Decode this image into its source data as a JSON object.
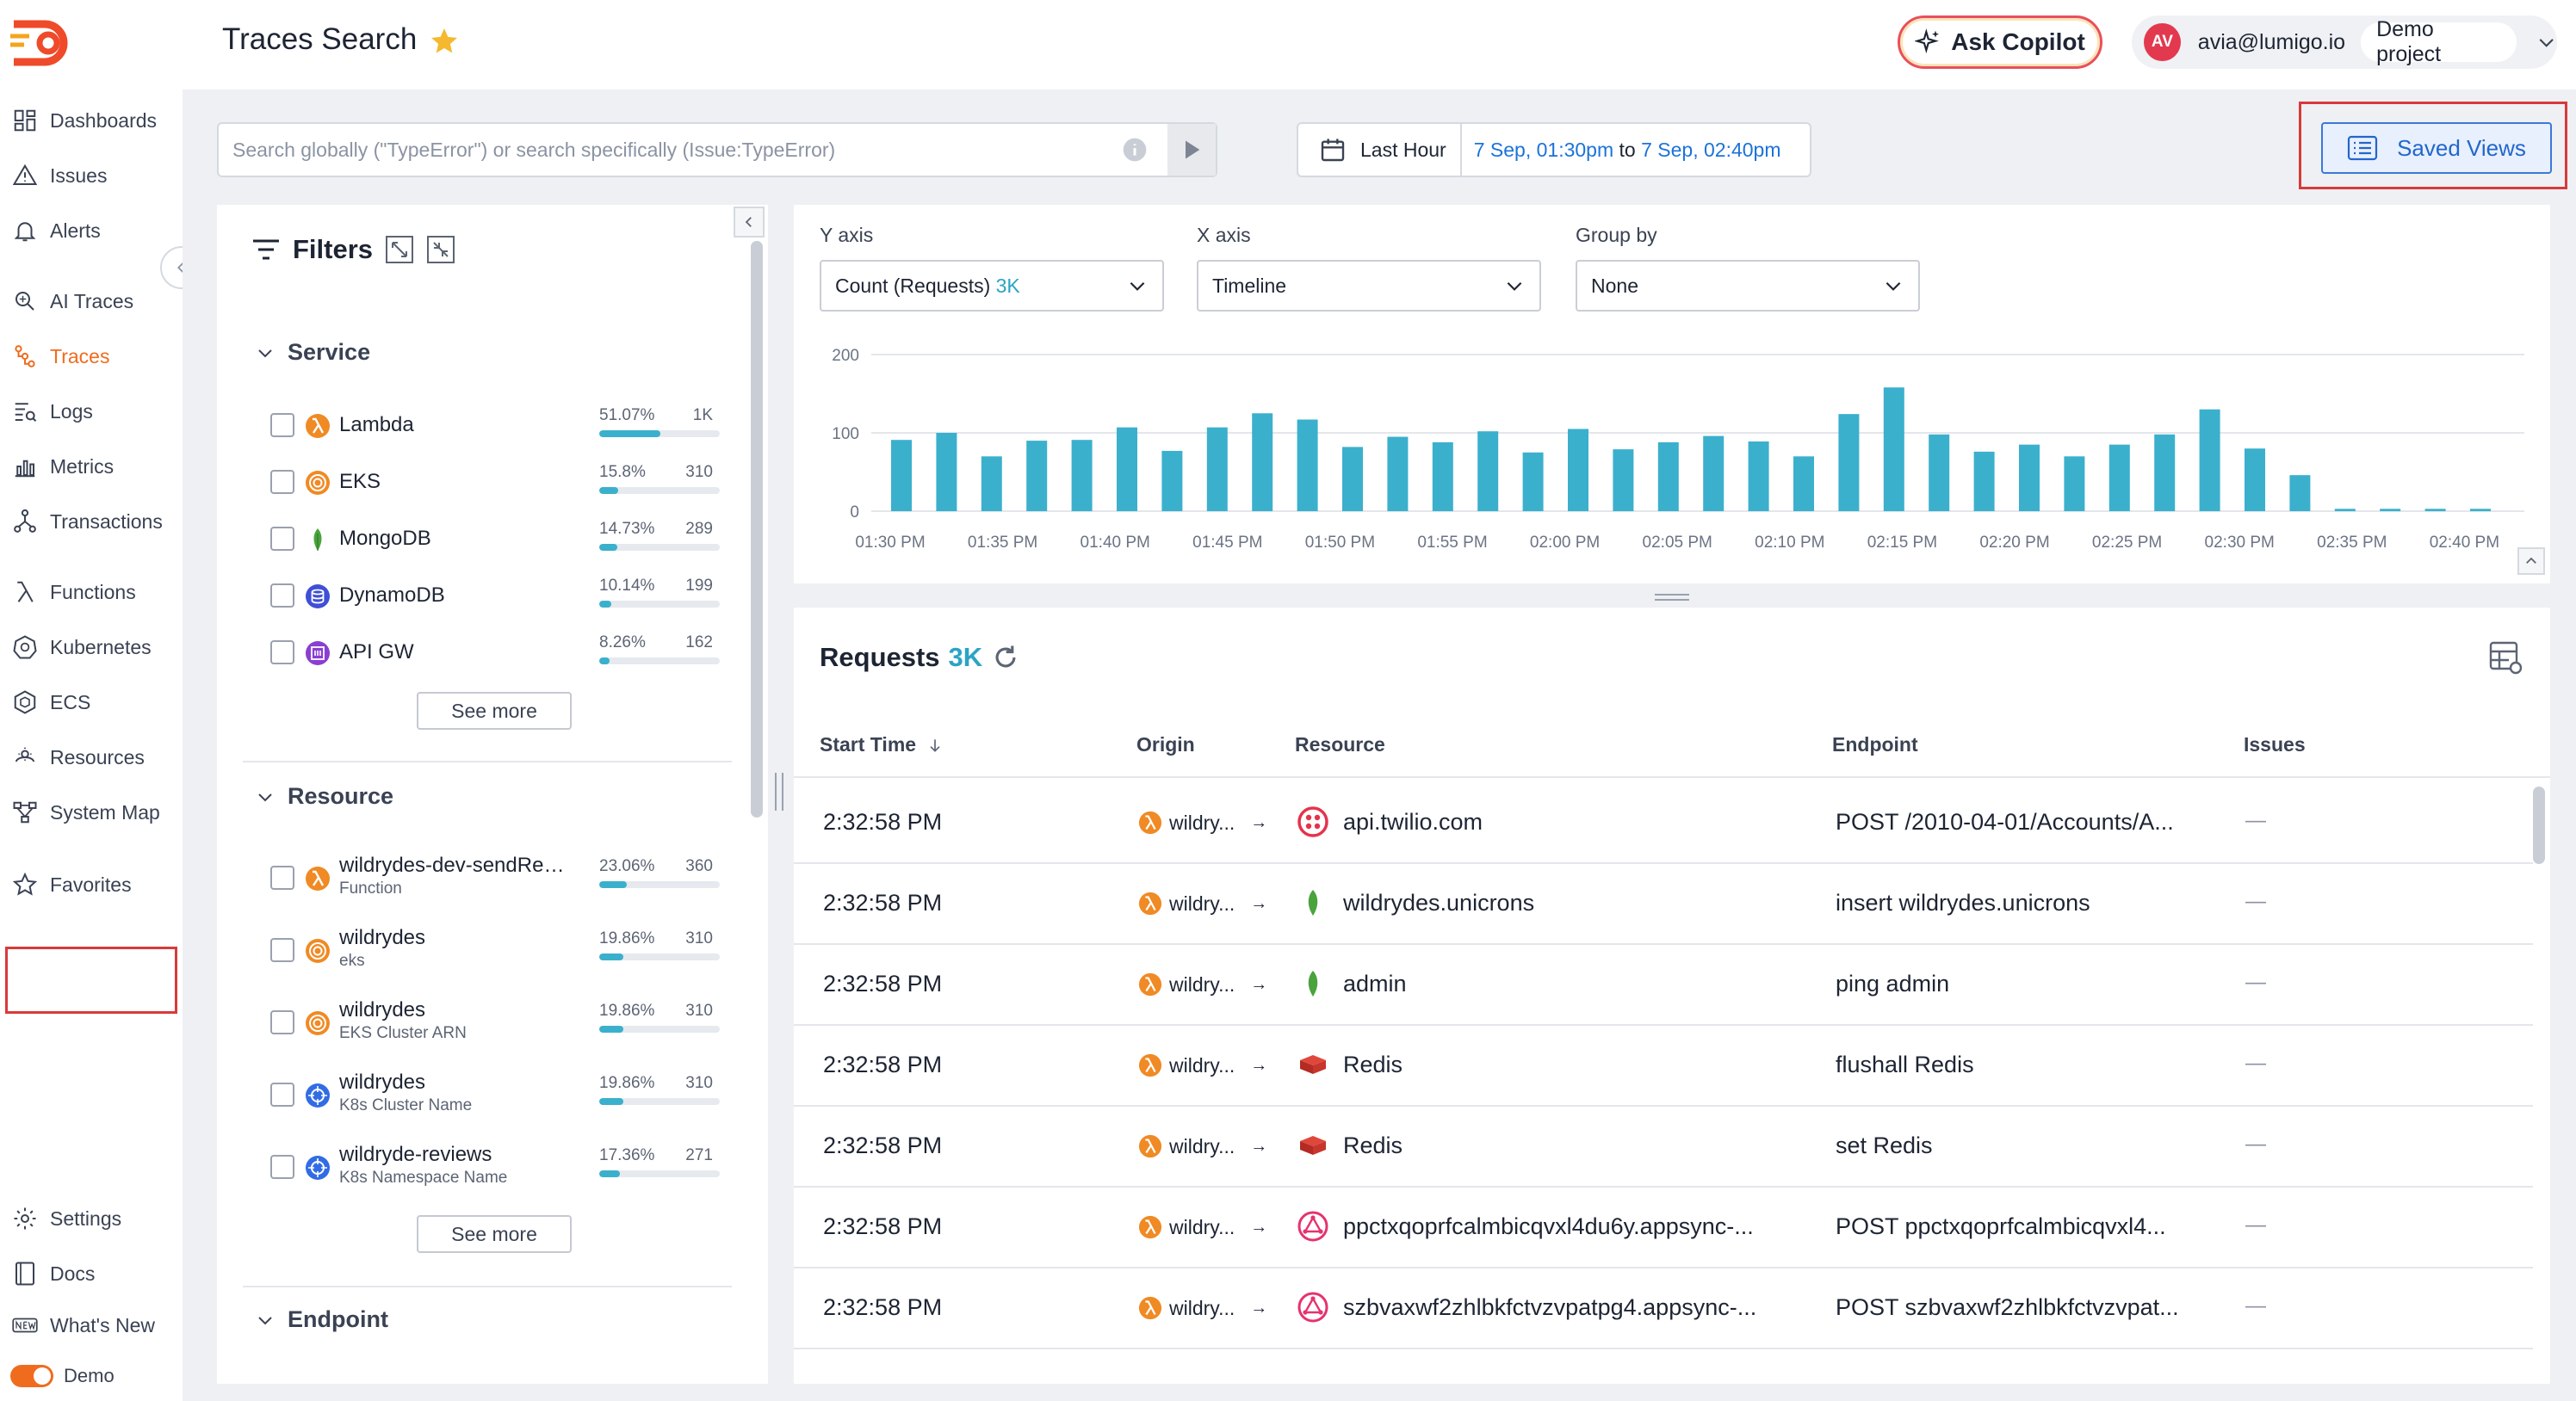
{
  "header": {
    "title": "Traces Search",
    "copilot_label": "Ask Copilot",
    "avatar_initials": "AV",
    "account_email": "avia@lumigo.io",
    "project": "Demo project"
  },
  "sidebar": {
    "items": [
      {
        "label": "Dashboards",
        "icon": "dashboard-icon"
      },
      {
        "label": "Issues",
        "icon": "warning-icon"
      },
      {
        "label": "Alerts",
        "icon": "bell-icon"
      },
      {
        "label": "AI Traces",
        "icon": "ai-search-icon"
      },
      {
        "label": "Traces",
        "icon": "traces-icon"
      },
      {
        "label": "Logs",
        "icon": "logs-icon"
      },
      {
        "label": "Metrics",
        "icon": "metrics-icon"
      },
      {
        "label": "Transactions",
        "icon": "transactions-icon"
      },
      {
        "label": "Functions",
        "icon": "lambda-icon"
      },
      {
        "label": "Kubernetes",
        "icon": "kubernetes-icon"
      },
      {
        "label": "ECS",
        "icon": "ecs-icon"
      },
      {
        "label": "Resources",
        "icon": "resources-icon"
      },
      {
        "label": "System Map",
        "icon": "system-map-icon"
      },
      {
        "label": "Favorites",
        "icon": "star-icon"
      },
      {
        "label": "Settings",
        "icon": "gear-icon"
      },
      {
        "label": "Docs",
        "icon": "docs-icon"
      },
      {
        "label": "What's New",
        "icon": "new-icon"
      }
    ],
    "active": "Traces",
    "demo_label": "Demo"
  },
  "search": {
    "placeholder": "Search globally (\"TypeError\") or search specifically (Issue:TypeError)"
  },
  "time": {
    "label": "Last Hour",
    "from": "7 Sep, 01:30pm",
    "to_word": "to",
    "to": "7 Sep, 02:40pm"
  },
  "saved_views_label": "Saved Views",
  "filters": {
    "title": "Filters",
    "service": {
      "title": "Service",
      "rows": [
        {
          "name": "Lambda",
          "pct": "51.07%",
          "count": "1K",
          "fill": 0.5107,
          "icon": "lambda-icon"
        },
        {
          "name": "EKS",
          "pct": "15.8%",
          "count": "310",
          "fill": 0.158,
          "icon": "eks-icon"
        },
        {
          "name": "MongoDB",
          "pct": "14.73%",
          "count": "289",
          "fill": 0.1473,
          "icon": "mongodb-icon"
        },
        {
          "name": "DynamoDB",
          "pct": "10.14%",
          "count": "199",
          "fill": 0.1014,
          "icon": "dynamodb-icon"
        },
        {
          "name": "API GW",
          "pct": "8.26%",
          "count": "162",
          "fill": 0.0826,
          "icon": "api-gateway-icon"
        }
      ],
      "see_more": "See more"
    },
    "resource": {
      "title": "Resource",
      "rows": [
        {
          "name": "wildrydes-dev-sendRece...",
          "sub": "Function",
          "pct": "23.06%",
          "count": "360",
          "fill": 0.2306,
          "icon": "lambda-icon"
        },
        {
          "name": "wildrydes",
          "sub": "eks",
          "pct": "19.86%",
          "count": "310",
          "fill": 0.1986,
          "icon": "eks-icon"
        },
        {
          "name": "wildrydes",
          "sub": "EKS Cluster ARN",
          "pct": "19.86%",
          "count": "310",
          "fill": 0.1986,
          "icon": "eks-icon"
        },
        {
          "name": "wildrydes",
          "sub": "K8s Cluster Name",
          "pct": "19.86%",
          "count": "310",
          "fill": 0.1986,
          "icon": "kubernetes-icon"
        },
        {
          "name": "wildryde-reviews",
          "sub": "K8s Namespace Name",
          "pct": "17.36%",
          "count": "271",
          "fill": 0.1736,
          "icon": "kubernetes-icon"
        }
      ],
      "see_more": "See more"
    },
    "endpoint": {
      "title": "Endpoint"
    }
  },
  "chart_controls": {
    "y_axis_label": "Y axis",
    "y_axis_value": "Count (Requests)",
    "y_axis_count": "3K",
    "x_axis_label": "X axis",
    "x_axis_value": "Timeline",
    "group_by_label": "Group by",
    "group_by_value": "None"
  },
  "chart_data": {
    "type": "bar",
    "title": "",
    "xlabel": "",
    "ylabel": "",
    "ylim": [
      0,
      200
    ],
    "y_ticks": [
      0,
      100,
      200
    ],
    "x_tick_labels": [
      "01:30 PM",
      "01:35 PM",
      "01:40 PM",
      "01:45 PM",
      "01:50 PM",
      "01:55 PM",
      "02:00 PM",
      "02:05 PM",
      "02:10 PM",
      "02:15 PM",
      "02:20 PM",
      "02:25 PM",
      "02:30 PM",
      "02:35 PM",
      "02:40 PM"
    ],
    "values": [
      91,
      100,
      70,
      90,
      91,
      107,
      77,
      107,
      125,
      117,
      82,
      95,
      88,
      102,
      75,
      105,
      79,
      88,
      96,
      89,
      70,
      124,
      158,
      98,
      76,
      85,
      70,
      85,
      98,
      130,
      80,
      46,
      3,
      3,
      3,
      3
    ],
    "bar_color": "#3bb0cc",
    "grid": true
  },
  "requests": {
    "title": "Requests",
    "count": "3K",
    "columns": [
      "Start Time",
      "Origin",
      "Resource",
      "Endpoint",
      "Issues"
    ],
    "rows": [
      {
        "time": "2:32:58 PM",
        "origin": "wildry...",
        "resource": "api.twilio.com",
        "resource_icon": "twilio-icon",
        "endpoint": "POST /2010-04-01/Accounts/A...",
        "issues": "—"
      },
      {
        "time": "2:32:58 PM",
        "origin": "wildry...",
        "resource": "wildrydes.unicrons",
        "resource_icon": "mongodb-icon",
        "endpoint": "insert wildrydes.unicrons",
        "issues": "—"
      },
      {
        "time": "2:32:58 PM",
        "origin": "wildry...",
        "resource": "admin",
        "resource_icon": "mongodb-icon",
        "endpoint": "ping admin",
        "issues": "—"
      },
      {
        "time": "2:32:58 PM",
        "origin": "wildry...",
        "resource": "Redis",
        "resource_icon": "redis-icon",
        "endpoint": "flushall Redis",
        "issues": "—"
      },
      {
        "time": "2:32:58 PM",
        "origin": "wildry...",
        "resource": "Redis",
        "resource_icon": "redis-icon",
        "endpoint": "set Redis",
        "issues": "—"
      },
      {
        "time": "2:32:58 PM",
        "origin": "wildry...",
        "resource": "ppctxqoprfcalmbicqvxl4du6y.appsync-...",
        "resource_icon": "appsync-icon",
        "endpoint": "POST ppctxqoprfcalmbicqvxl4...",
        "issues": "—"
      },
      {
        "time": "2:32:58 PM",
        "origin": "wildry...",
        "resource": "szbvaxwf2zhlbkfctvzvpatpg4.appsync-...",
        "resource_icon": "appsync-icon",
        "endpoint": "POST szbvaxwf2zhlbkfctvzvpat...",
        "issues": "—"
      }
    ]
  }
}
